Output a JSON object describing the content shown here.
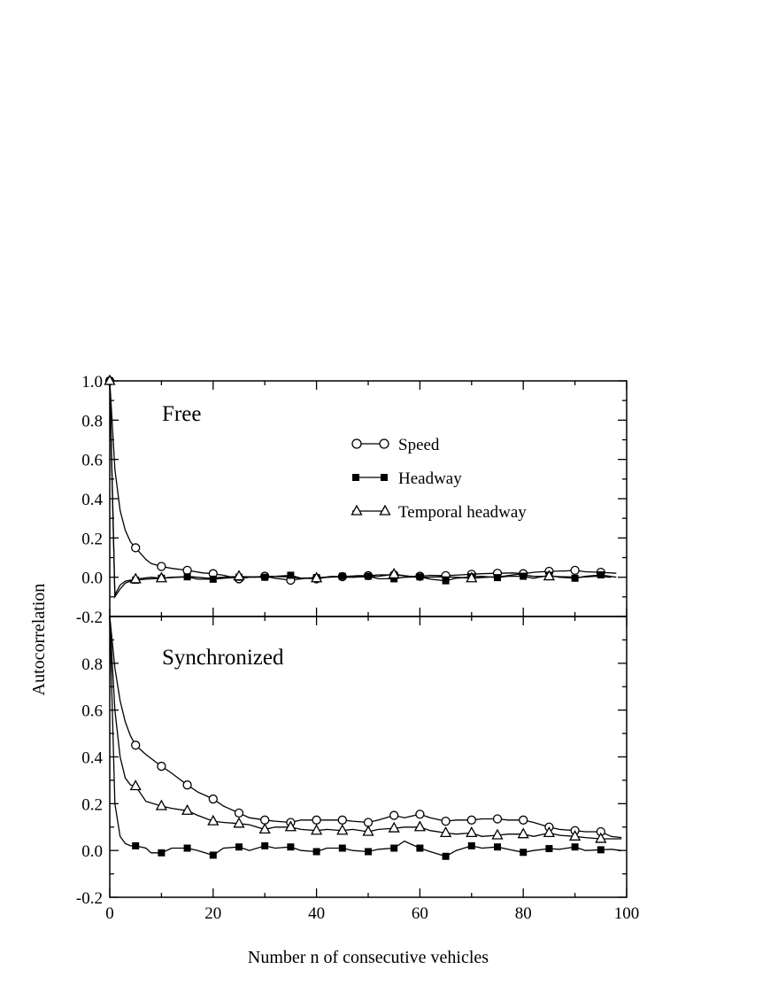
{
  "chart_data": [
    {
      "type": "line",
      "title": "Free",
      "xlabel": "Number n of consecutive vehicles",
      "ylabel": "Autocorrelation",
      "xlim": [
        0,
        100
      ],
      "ylim": [
        -0.2,
        1.0
      ],
      "yticks": [
        "-0.2",
        "0.0",
        "0.2",
        "0.4",
        "0.6",
        "0.8",
        "1.0"
      ],
      "xticks": [
        "0",
        "20",
        "40",
        "60",
        "80",
        "100"
      ],
      "legend": "top-right",
      "series": [
        {
          "name": "Speed",
          "marker": "open-circle",
          "x": [
            0,
            1,
            2,
            3,
            4,
            5,
            6,
            7,
            8,
            10,
            12,
            15,
            18,
            20,
            22,
            25,
            27,
            30,
            32,
            35,
            38,
            40,
            42,
            45,
            48,
            50,
            52,
            55,
            58,
            60,
            62,
            65,
            68,
            70,
            72,
            75,
            78,
            80,
            82,
            85,
            88,
            90,
            92,
            95,
            98
          ],
          "y": [
            1.0,
            0.55,
            0.34,
            0.24,
            0.18,
            0.15,
            0.12,
            0.09,
            0.07,
            0.055,
            0.045,
            0.035,
            0.022,
            0.018,
            0.01,
            -0.008,
            0.0,
            0.005,
            -0.005,
            -0.015,
            -0.005,
            -0.008,
            0.0,
            0.003,
            0.008,
            0.008,
            0.012,
            0.012,
            0.005,
            0.005,
            0.01,
            0.008,
            0.012,
            0.015,
            0.018,
            0.02,
            0.022,
            0.018,
            0.025,
            0.03,
            0.032,
            0.035,
            0.028,
            0.025,
            0.02
          ]
        },
        {
          "name": "Headway",
          "marker": "filled-square",
          "x": [
            0,
            1,
            2,
            3,
            4,
            5,
            7,
            10,
            12,
            15,
            17,
            20,
            22,
            25,
            27,
            30,
            32,
            35,
            37,
            40,
            42,
            45,
            47,
            50,
            52,
            55,
            57,
            60,
            62,
            65,
            67,
            70,
            72,
            75,
            77,
            80,
            82,
            85,
            87,
            90,
            92,
            95,
            98
          ],
          "y": [
            1.0,
            -0.1,
            -0.06,
            -0.03,
            -0.02,
            -0.015,
            -0.01,
            -0.005,
            0.0,
            0.002,
            -0.01,
            -0.01,
            -0.005,
            0.0,
            0.002,
            0.0,
            0.005,
            0.01,
            -0.005,
            -0.002,
            0.0,
            0.005,
            0.0,
            0.005,
            -0.008,
            -0.008,
            0.0,
            0.002,
            -0.01,
            -0.018,
            -0.005,
            0.002,
            0.005,
            -0.002,
            0.005,
            0.005,
            -0.005,
            0.01,
            0.0,
            -0.005,
            0.005,
            0.012,
            0.0
          ]
        },
        {
          "name": "Temporal headway",
          "marker": "open-triangle",
          "x": [
            0,
            1,
            2,
            3,
            5,
            8,
            10,
            13,
            16,
            19,
            22,
            25,
            28,
            31,
            34,
            37,
            40,
            43,
            46,
            49,
            52,
            55,
            58,
            61,
            64,
            67,
            70,
            73,
            76,
            79,
            82,
            85,
            88,
            91,
            94,
            97
          ],
          "y": [
            1.0,
            -0.09,
            -0.04,
            -0.02,
            -0.01,
            0.0,
            -0.005,
            0.0,
            0.002,
            -0.005,
            0.0,
            0.005,
            0.0,
            0.005,
            0.002,
            -0.005,
            -0.005,
            0.005,
            0.0,
            0.002,
            0.005,
            0.015,
            0.005,
            0.0,
            0.002,
            0.0,
            -0.005,
            0.0,
            0.005,
            0.015,
            0.005,
            0.005,
            0.002,
            0.0,
            0.005,
            0.0
          ]
        }
      ]
    },
    {
      "type": "line",
      "title": "Synchronized",
      "xlabel": "Number n of consecutive vehicles",
      "ylabel": "Autocorrelation",
      "xlim": [
        0,
        100
      ],
      "ylim": [
        -0.2,
        1.0
      ],
      "yticks": [
        "-0.2",
        "0.0",
        "0.2",
        "0.4",
        "0.6",
        "0.8"
      ],
      "xticks": [
        "0",
        "20",
        "40",
        "60",
        "80",
        "100"
      ],
      "series": [
        {
          "name": "Speed",
          "marker": "open-circle",
          "x": [
            0,
            1,
            2,
            3,
            4,
            5,
            7,
            10,
            12,
            15,
            17,
            20,
            22,
            25,
            27,
            30,
            32,
            35,
            37,
            40,
            42,
            45,
            47,
            50,
            52,
            55,
            57,
            60,
            62,
            65,
            67,
            70,
            72,
            75,
            77,
            80,
            82,
            85,
            87,
            90,
            92,
            95,
            97,
            99
          ],
          "y": [
            1.0,
            0.78,
            0.64,
            0.55,
            0.49,
            0.45,
            0.41,
            0.36,
            0.33,
            0.28,
            0.25,
            0.22,
            0.19,
            0.16,
            0.14,
            0.13,
            0.125,
            0.12,
            0.13,
            0.13,
            0.13,
            0.13,
            0.125,
            0.12,
            0.13,
            0.15,
            0.14,
            0.155,
            0.14,
            0.125,
            0.13,
            0.13,
            0.135,
            0.135,
            0.13,
            0.13,
            0.12,
            0.1,
            0.09,
            0.085,
            0.08,
            0.08,
            0.06,
            0.055
          ]
        },
        {
          "name": "Headway",
          "marker": "filled-square",
          "x": [
            0,
            1,
            2,
            3,
            4,
            5,
            7,
            8,
            10,
            12,
            15,
            17,
            20,
            22,
            25,
            27,
            30,
            32,
            35,
            37,
            40,
            42,
            45,
            47,
            50,
            52,
            55,
            57,
            60,
            62,
            65,
            67,
            70,
            72,
            75,
            77,
            80,
            82,
            85,
            87,
            90,
            92,
            95,
            97,
            99
          ],
          "y": [
            1.0,
            0.2,
            0.06,
            0.03,
            0.02,
            0.02,
            0.01,
            -0.01,
            -0.01,
            0.01,
            0.01,
            0.0,
            -0.02,
            0.01,
            0.015,
            0.0,
            0.02,
            0.01,
            0.015,
            0.0,
            -0.005,
            0.01,
            0.01,
            0.0,
            -0.005,
            0.005,
            0.01,
            0.04,
            0.01,
            -0.005,
            -0.025,
            0.0,
            0.02,
            0.01,
            0.015,
            0.005,
            -0.008,
            0.0,
            0.008,
            0.005,
            0.015,
            0.0,
            0.003,
            0.005,
            0.0
          ]
        },
        {
          "name": "Temporal headway",
          "marker": "open-triangle",
          "x": [
            0,
            1,
            2,
            3,
            4,
            5,
            7,
            10,
            12,
            15,
            17,
            20,
            22,
            25,
            27,
            30,
            32,
            35,
            37,
            40,
            42,
            45,
            47,
            50,
            52,
            55,
            57,
            60,
            62,
            65,
            67,
            70,
            72,
            75,
            77,
            80,
            82,
            85,
            87,
            90,
            92,
            95,
            97,
            99
          ],
          "y": [
            1.0,
            0.6,
            0.4,
            0.31,
            0.28,
            0.275,
            0.21,
            0.19,
            0.18,
            0.17,
            0.15,
            0.125,
            0.12,
            0.115,
            0.11,
            0.09,
            0.1,
            0.1,
            0.09,
            0.085,
            0.09,
            0.085,
            0.09,
            0.08,
            0.09,
            0.095,
            0.1,
            0.1,
            0.085,
            0.075,
            0.07,
            0.075,
            0.06,
            0.065,
            0.07,
            0.07,
            0.06,
            0.075,
            0.065,
            0.06,
            0.055,
            0.05,
            0.05,
            0.05
          ]
        }
      ]
    }
  ]
}
